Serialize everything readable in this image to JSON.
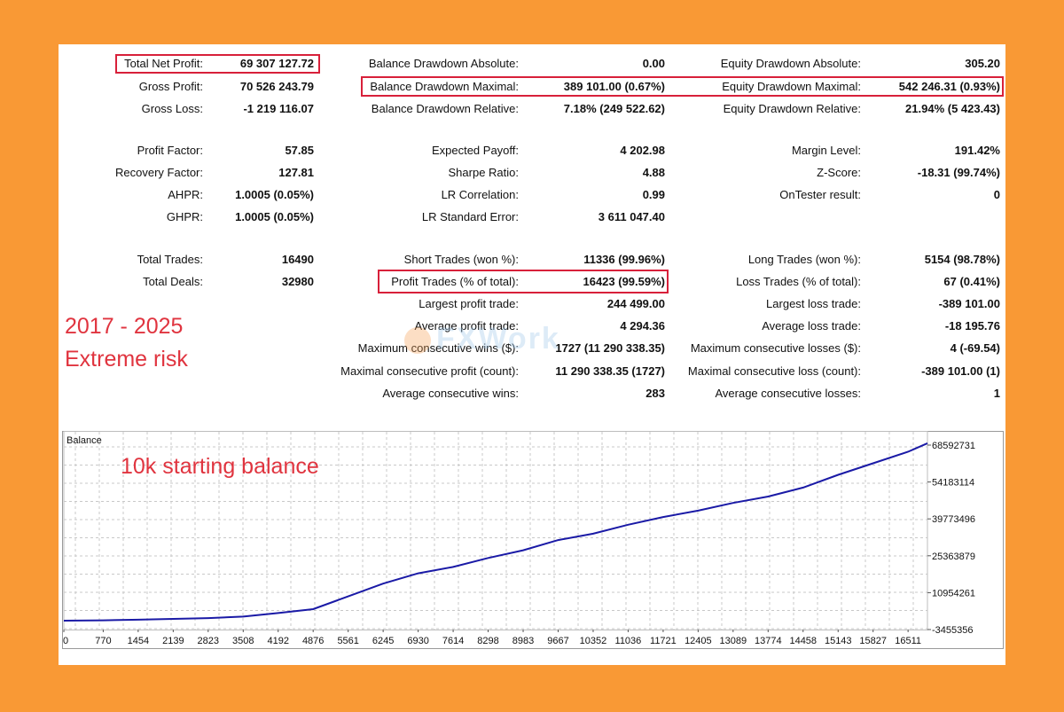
{
  "stats": {
    "col1": [
      {
        "label": "Total Net Profit:",
        "value": "69 307 127.72"
      },
      {
        "label": "Gross Profit:",
        "value": "70 526 243.79"
      },
      {
        "label": "Gross Loss:",
        "value": "-1 219 116.07"
      },
      {
        "label": "Profit Factor:",
        "value": "57.85"
      },
      {
        "label": "Recovery Factor:",
        "value": "127.81"
      },
      {
        "label": "AHPR:",
        "value": "1.0005 (0.05%)"
      },
      {
        "label": "GHPR:",
        "value": "1.0005 (0.05%)"
      },
      {
        "label": "Total Trades:",
        "value": "16490"
      },
      {
        "label": "Total Deals:",
        "value": "32980"
      }
    ],
    "col2": [
      {
        "label": "Balance Drawdown Absolute:",
        "value": "0.00"
      },
      {
        "label": "Balance Drawdown Maximal:",
        "value": "389 101.00 (0.67%)"
      },
      {
        "label": "Balance Drawdown Relative:",
        "value": "7.18% (249 522.62)"
      },
      {
        "label": "Expected Payoff:",
        "value": "4 202.98"
      },
      {
        "label": "Sharpe Ratio:",
        "value": "4.88"
      },
      {
        "label": "LR Correlation:",
        "value": "0.99"
      },
      {
        "label": "LR Standard Error:",
        "value": "3 611 047.40"
      },
      {
        "label": "Short Trades (won %):",
        "value": "11336 (99.96%)"
      },
      {
        "label": "Profit Trades (% of total):",
        "value": "16423 (99.59%)"
      },
      {
        "label": "Largest profit trade:",
        "value": "244 499.00"
      },
      {
        "label": "Average profit trade:",
        "value": "4 294.36"
      },
      {
        "label": "Maximum consecutive wins ($):",
        "value": "1727 (11 290 338.35)"
      },
      {
        "label": "Maximal consecutive profit (count):",
        "value": "11 290 338.35 (1727)"
      },
      {
        "label": "Average consecutive wins:",
        "value": "283"
      }
    ],
    "col3": [
      {
        "label": "Equity Drawdown Absolute:",
        "value": "305.20"
      },
      {
        "label": "Equity Drawdown Maximal:",
        "value": "542 246.31 (0.93%)"
      },
      {
        "label": "Equity Drawdown Relative:",
        "value": "21.94% (5 423.43)"
      },
      {
        "label": "Margin Level:",
        "value": "191.42%"
      },
      {
        "label": "Z-Score:",
        "value": "-18.31 (99.74%)"
      },
      {
        "label": "OnTester result:",
        "value": "0"
      },
      {
        "label": "Long Trades (won %):",
        "value": "5154 (98.78%)"
      },
      {
        "label": "Loss Trades (% of total):",
        "value": "67 (0.41%)"
      },
      {
        "label": "Largest loss trade:",
        "value": "-389 101.00"
      },
      {
        "label": "Average loss trade:",
        "value": "-18 195.76"
      },
      {
        "label": "Maximum consecutive losses ($):",
        "value": "4 (-69.54)"
      },
      {
        "label": "Maximal consecutive loss (count):",
        "value": "-389 101.00 (1)"
      },
      {
        "label": "Average consecutive losses:",
        "value": "1"
      }
    ]
  },
  "annotations": {
    "period": "2017 - 2025",
    "risk": "Extreme risk",
    "starting_balance": "10k starting balance"
  },
  "watermark": "FXWork",
  "colors": {
    "background": "#f99935",
    "highlight": "#d8203a",
    "annotation": "#e0343f",
    "line": "#1a1aa6",
    "grid": "#c8c8c8"
  },
  "chart_data": {
    "type": "line",
    "title": "Balance",
    "series": [
      {
        "name": "Balance",
        "x": [
          0,
          770,
          1454,
          2139,
          2823,
          3508,
          4192,
          4876,
          5561,
          6245,
          6930,
          7614,
          8298,
          8983,
          9667,
          10352,
          11036,
          11721,
          12405,
          13089,
          13774,
          14458,
          15143,
          15827,
          16511,
          16890
        ],
        "y": [
          10000,
          150000,
          400000,
          700000,
          1000000,
          1600000,
          3000000,
          4500000,
          9500000,
          14500000,
          18500000,
          21000000,
          24500000,
          27500000,
          31500000,
          34000000,
          37500000,
          40500000,
          43000000,
          46000000,
          48500000,
          52000000,
          57000000,
          61500000,
          66000000,
          69317127
        ]
      }
    ],
    "x_ticks": [
      "0",
      "770",
      "1454",
      "2139",
      "2823",
      "3508",
      "4192",
      "4876",
      "5561",
      "6245",
      "6930",
      "7614",
      "8298",
      "8983",
      "9667",
      "10352",
      "11036",
      "11721",
      "12405",
      "13089",
      "13774",
      "14458",
      "15143",
      "15827",
      "16511"
    ],
    "x_tick_values": [
      0,
      770,
      1454,
      2139,
      2823,
      3508,
      4192,
      4876,
      5561,
      6245,
      6930,
      7614,
      8298,
      8983,
      9667,
      10352,
      11036,
      11721,
      12405,
      13089,
      13774,
      14458,
      15143,
      15827,
      16511
    ],
    "y_ticks": [
      "68592731",
      "54183114",
      "39773496",
      "25363879",
      "10954261",
      "-3455356"
    ],
    "y_tick_values": [
      68592731,
      54183114,
      39773496,
      25363879,
      10954261,
      -3455356
    ],
    "xlim": [
      0,
      16890
    ],
    "ylim": [
      -3455356,
      68592731
    ]
  }
}
